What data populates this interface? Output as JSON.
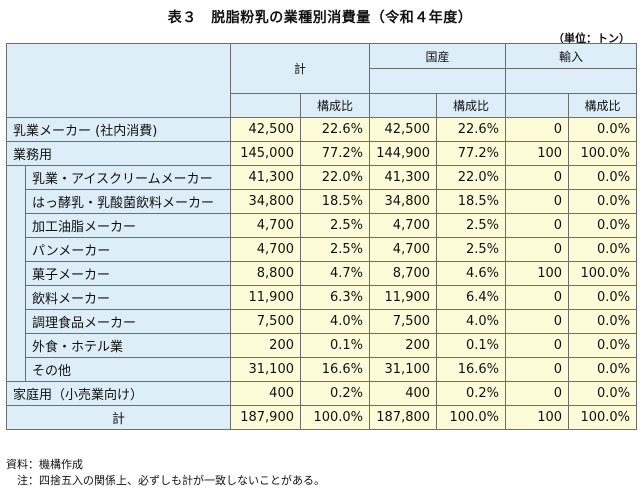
{
  "title": "表３　脱脂粉乳の業種別消費量（令和４年度）",
  "unit": "（単位：トン）",
  "headers": {
    "total": "計",
    "domestic": "国産",
    "import": "輸入",
    "ratio": "構成比"
  },
  "rows": [
    {
      "label": "乳業メーカー (社内消費)",
      "values": [
        "42,500",
        "22.6%",
        "42,500",
        "22.6%",
        "0",
        "0.0%"
      ]
    },
    {
      "label": "業務用",
      "values": [
        "145,000",
        "77.2%",
        "144,900",
        "77.2%",
        "100",
        "100.0%"
      ]
    },
    {
      "label": "乳業・アイスクリームメーカー",
      "values": [
        "41,300",
        "22.0%",
        "41,300",
        "22.0%",
        "0",
        "0.0%"
      ]
    },
    {
      "label": "はっ酵乳・乳酸菌飲料メーカー",
      "values": [
        "34,800",
        "18.5%",
        "34,800",
        "18.5%",
        "0",
        "0.0%"
      ]
    },
    {
      "label": "加工油脂メーカー",
      "values": [
        "4,700",
        "2.5%",
        "4,700",
        "2.5%",
        "0",
        "0.0%"
      ]
    },
    {
      "label": "パンメーカー",
      "values": [
        "4,700",
        "2.5%",
        "4,700",
        "2.5%",
        "0",
        "0.0%"
      ]
    },
    {
      "label": "菓子メーカー",
      "values": [
        "8,800",
        "4.7%",
        "8,700",
        "4.6%",
        "100",
        "100.0%"
      ]
    },
    {
      "label": "飲料メーカー",
      "values": [
        "11,900",
        "6.3%",
        "11,900",
        "6.4%",
        "0",
        "0.0%"
      ]
    },
    {
      "label": "調理食品メーカー",
      "values": [
        "7,500",
        "4.0%",
        "7,500",
        "4.0%",
        "0",
        "0.0%"
      ]
    },
    {
      "label": "外食・ホテル業",
      "values": [
        "200",
        "0.1%",
        "200",
        "0.1%",
        "0",
        "0.0%"
      ]
    },
    {
      "label": "その他",
      "values": [
        "31,100",
        "16.6%",
        "31,100",
        "16.6%",
        "0",
        "0.0%"
      ]
    },
    {
      "label": "家庭用（小売業向け）",
      "values": [
        "400",
        "0.2%",
        "400",
        "0.2%",
        "0",
        "0.0%"
      ]
    },
    {
      "label": "計",
      "values": [
        "187,900",
        "100.0%",
        "187,800",
        "100.0%",
        "100",
        "100.0%"
      ]
    }
  ],
  "notes": [
    "資料：機構作成",
    "　注：四捨五入の関係上、必ずしも計が一致しないことがある。"
  ],
  "colors": {
    "header_bg": "#deeef8",
    "value_bg": "#fefbd8",
    "border": "#6e6e6e"
  }
}
